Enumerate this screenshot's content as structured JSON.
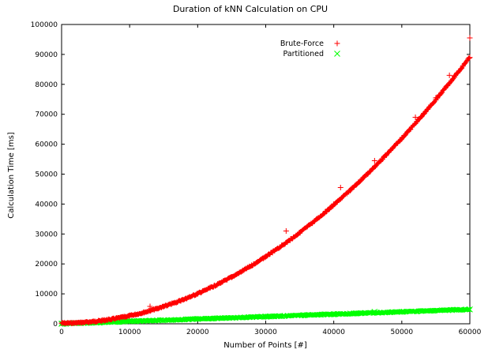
{
  "chart_data": {
    "type": "scatter",
    "title": "Duration of kNN Calculation on CPU",
    "xlabel": "Number of Points [#]",
    "ylabel": "Calculation Time [ms]",
    "xlim": [
      0,
      60000
    ],
    "ylim": [
      0,
      100000
    ],
    "xticks": [
      0,
      10000,
      20000,
      30000,
      40000,
      50000,
      60000
    ],
    "yticks": [
      0,
      10000,
      20000,
      30000,
      40000,
      50000,
      60000,
      70000,
      80000,
      90000,
      100000
    ],
    "grid": false,
    "legend_position": "top-right",
    "series": [
      {
        "name": "Brute-Force",
        "marker": "plus",
        "color": "#ff0000",
        "trend": {
          "form": "quadratic",
          "coef_a": 2.47e-05,
          "x_from": 0,
          "x_to": 60000,
          "y_at_start": 200
        },
        "x": [
          0,
          5000,
          10000,
          13000,
          15000,
          20000,
          25000,
          30000,
          33000,
          35000,
          40000,
          41000,
          45000,
          46000,
          50000,
          52000,
          55000,
          57000,
          60000,
          60000
        ],
        "y": [
          200,
          800,
          2700,
          5800,
          5700,
          10000,
          15500,
          22500,
          31000,
          30500,
          40000,
          45500,
          50000,
          54500,
          62000,
          69000,
          75500,
          83000,
          89000,
          95500
        ]
      },
      {
        "name": "Partitioned",
        "marker": "cross",
        "color": "#00ff00",
        "trend": {
          "form": "linear",
          "x_from": 0,
          "x_to": 60000,
          "y_from": 0,
          "y_to": 4800
        },
        "x": [
          0,
          10000,
          20000,
          30000,
          40000,
          46000,
          50000,
          60000
        ],
        "y": [
          0,
          800,
          1600,
          2400,
          3200,
          4000,
          4000,
          4800
        ]
      }
    ]
  }
}
